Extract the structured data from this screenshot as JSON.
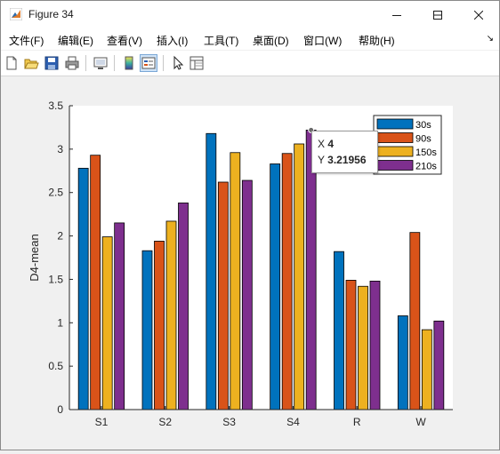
{
  "window": {
    "title": "Figure 34"
  },
  "menu": [
    "文件(F)",
    "编辑(E)",
    "查看(V)",
    "插入(I)",
    "工具(T)",
    "桌面(D)",
    "窗口(W)",
    "帮助(H)"
  ],
  "toolbar_icons": [
    "new-figure-icon",
    "open-file-icon",
    "save-icon",
    "print-icon",
    "link-plot-icon",
    "insert-colorbar-icon",
    "insert-legend-icon",
    "edit-plot-icon",
    "property-inspector-icon"
  ],
  "datatip": {
    "x_label": "X",
    "x_value": "4",
    "y_label": "Y",
    "y_value": "3.21956"
  },
  "colors": {
    "series": [
      "#0072bd",
      "#d95319",
      "#edb120",
      "#7e2f8e"
    ]
  },
  "chart_data": {
    "type": "bar",
    "categories": [
      "S1",
      "S2",
      "S3",
      "S4",
      "R",
      "W"
    ],
    "series": [
      {
        "name": "30s",
        "values": [
          2.78,
          1.83,
          3.18,
          2.83,
          1.82,
          1.08
        ]
      },
      {
        "name": "90s",
        "values": [
          2.93,
          1.94,
          2.62,
          2.95,
          1.49,
          2.04
        ]
      },
      {
        "name": "150s",
        "values": [
          1.99,
          2.17,
          2.96,
          3.06,
          1.42,
          0.92
        ]
      },
      {
        "name": "210s",
        "values": [
          2.15,
          2.38,
          2.64,
          3.21956,
          1.48,
          1.02
        ]
      }
    ],
    "xlabel": "",
    "ylabel": "D4-mean",
    "ylim": [
      0,
      3.5
    ],
    "yticks": [
      0,
      0.5,
      1,
      1.5,
      2,
      2.5,
      3,
      3.5
    ],
    "ytick_labels": [
      "0",
      "0.5",
      "1",
      "1.5",
      "2",
      "2.5",
      "3",
      "3.5"
    ],
    "legend_position": "top-right",
    "grid": false
  }
}
